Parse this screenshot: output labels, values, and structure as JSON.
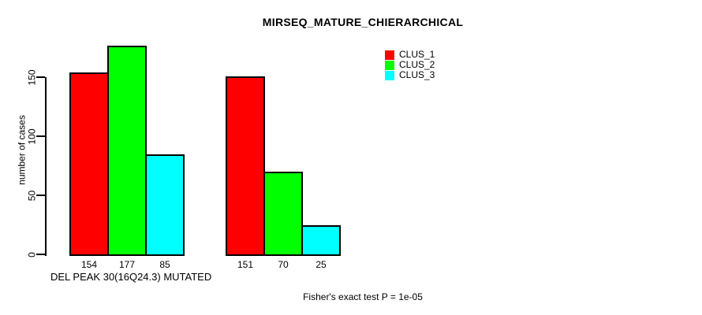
{
  "chart_data": {
    "type": "bar",
    "title": "MIRSEQ_MATURE_CHIERARCHICAL",
    "ylabel": "number of cases",
    "xlabel": "",
    "yticks": [
      0,
      50,
      100,
      150
    ],
    "ylim": [
      0,
      177
    ],
    "grid": false,
    "legend_position": "top-right",
    "categories": [
      "DEL PEAK 30(16Q24.3) MUTATED",
      ""
    ],
    "series": [
      {
        "name": "CLUS_1",
        "color": "#ff0000",
        "values": [
          154,
          151
        ]
      },
      {
        "name": "CLUS_2",
        "color": "#00ff00",
        "values": [
          177,
          70
        ]
      },
      {
        "name": "CLUS_3",
        "color": "#00ffff",
        "values": [
          85,
          25
        ]
      }
    ],
    "bar_labels_group_1": [
      154,
      177,
      85
    ],
    "bar_labels_group_2": [
      151,
      70,
      25
    ],
    "footnote": "Fisher's exact test P = 1e-05",
    "colors": {
      "bar_outline": "#000000",
      "axis": "#000000",
      "text": "#000000",
      "background": "#ffffff"
    }
  }
}
